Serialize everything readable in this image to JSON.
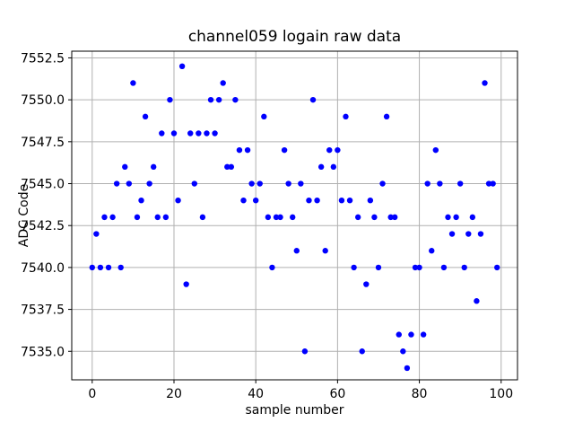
{
  "figure": {
    "background": "#ffffff"
  },
  "chart_data": {
    "type": "scatter",
    "title": "channel059 logain raw data",
    "xlabel": "sample number",
    "ylabel": "ADC Code",
    "marker_color": "#0000ff",
    "marker_radius_px": 3.2,
    "grid": true,
    "grid_color": "#b0b0b0",
    "spine_color": "#000000",
    "legend": "none",
    "xlim": [
      -5,
      104
    ],
    "ylim": [
      7533.3,
      7552.9
    ],
    "xticks": [
      0,
      20,
      40,
      60,
      80,
      100
    ],
    "yticks": [
      7535.0,
      7537.5,
      7540.0,
      7542.5,
      7545.0,
      7547.5,
      7550.0,
      7552.5
    ],
    "x": [
      0,
      1,
      2,
      3,
      4,
      5,
      6,
      7,
      8,
      9,
      10,
      11,
      12,
      13,
      14,
      15,
      16,
      17,
      18,
      19,
      20,
      21,
      22,
      23,
      24,
      25,
      26,
      27,
      28,
      29,
      30,
      31,
      32,
      33,
      34,
      35,
      36,
      37,
      38,
      39,
      40,
      41,
      42,
      43,
      44,
      45,
      46,
      47,
      48,
      49,
      50,
      51,
      52,
      53,
      54,
      55,
      56,
      57,
      58,
      59,
      60,
      61,
      62,
      63,
      64,
      65,
      66,
      67,
      68,
      69,
      70,
      71,
      72,
      73,
      74,
      75,
      76,
      77,
      78,
      79,
      80,
      81,
      82,
      83,
      84,
      85,
      86,
      87,
      88,
      89,
      90,
      91,
      92,
      93,
      94,
      95,
      96,
      97,
      98,
      99
    ],
    "y": [
      7540,
      7542,
      7540,
      7543,
      7540,
      7543,
      7545,
      7540,
      7546,
      7545,
      7551,
      7543,
      7544,
      7549,
      7545,
      7546,
      7543,
      7548,
      7543,
      7550,
      7548,
      7544,
      7552,
      7539,
      7548,
      7545,
      7548,
      7543,
      7548,
      7550,
      7548,
      7550,
      7551,
      7546,
      7546,
      7550,
      7547,
      7544,
      7547,
      7545,
      7544,
      7545,
      7549,
      7543,
      7540,
      7543,
      7543,
      7547,
      7545,
      7543,
      7541,
      7545,
      7535,
      7544,
      7550,
      7544,
      7546,
      7541,
      7547,
      7546,
      7547,
      7544,
      7549,
      7544,
      7540,
      7543,
      7535,
      7539,
      7544,
      7543,
      7540,
      7545,
      7549,
      7543,
      7543,
      7536,
      7535,
      7534,
      7536,
      7540,
      7540,
      7536,
      7545,
      7541,
      7547,
      7545,
      7540,
      7543,
      7542,
      7543,
      7545,
      7540,
      7542,
      7543,
      7538,
      7542,
      7551,
      7545,
      7545,
      7540
    ]
  }
}
